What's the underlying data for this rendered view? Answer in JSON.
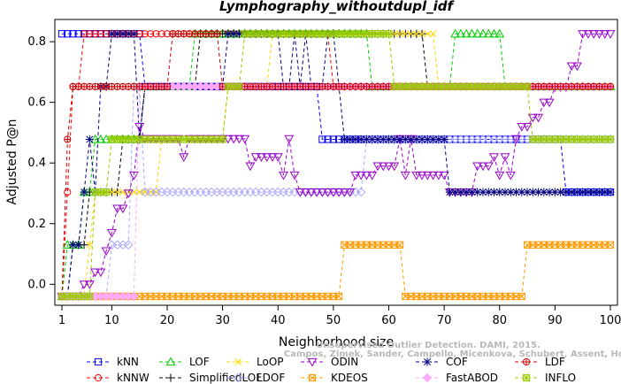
{
  "chart_data": {
    "type": "line",
    "title": "Lymphography_withoutdupl_idf",
    "xlabel": "Neighborhood size",
    "ylabel": "Adjusted P@n",
    "xlim": [
      1,
      100
    ],
    "ylim": [
      -0.04,
      0.85
    ],
    "xticks": [
      1,
      10,
      20,
      30,
      40,
      50,
      60,
      70,
      80,
      90,
      100
    ],
    "yticks": [
      0.0,
      0.2,
      0.4,
      0.6,
      0.8
    ],
    "grid": false,
    "legend_position": "bottom",
    "series": [
      {
        "name": "kNN",
        "color": "#0000ff",
        "marker": "square",
        "points": [
          [
            1,
            0.826
          ],
          [
            15,
            0.826
          ],
          [
            16,
            0.652
          ],
          [
            47,
            0.652
          ],
          [
            48,
            0.478
          ],
          [
            91,
            0.478
          ],
          [
            92,
            0.304
          ],
          [
            100,
            0.304
          ]
        ]
      },
      {
        "name": "kNNW",
        "color": "#ff0000",
        "marker": "circle",
        "points": [
          [
            1,
            -0.04
          ],
          [
            2,
            0.304
          ],
          [
            3,
            0.652
          ],
          [
            4,
            0.652
          ],
          [
            5,
            0.826
          ],
          [
            49,
            0.826
          ],
          [
            50,
            0.652
          ],
          [
            100,
            0.652
          ]
        ]
      },
      {
        "name": "LOF",
        "color": "#00cc00",
        "marker": "triangle",
        "points": [
          [
            1,
            -0.04
          ],
          [
            2,
            0.13
          ],
          [
            4,
            0.13
          ],
          [
            5,
            0.304
          ],
          [
            7,
            0.478
          ],
          [
            14,
            0.478
          ],
          [
            16,
            0.652
          ],
          [
            24,
            0.652
          ],
          [
            25,
            0.826
          ],
          [
            56,
            0.826
          ],
          [
            57,
            0.652
          ],
          [
            71,
            0.652
          ],
          [
            72,
            0.826
          ],
          [
            80,
            0.826
          ],
          [
            81,
            0.652
          ],
          [
            100,
            0.652
          ]
        ]
      },
      {
        "name": "SimplifiedLOF",
        "color": "#000000",
        "marker": "plus",
        "points": [
          [
            1,
            -0.04
          ],
          [
            3,
            0.13
          ],
          [
            5,
            0.13
          ],
          [
            6,
            0.304
          ],
          [
            11,
            0.304
          ],
          [
            12,
            0.478
          ],
          [
            15,
            0.478
          ],
          [
            16,
            0.652
          ],
          [
            25,
            0.652
          ],
          [
            26,
            0.826
          ],
          [
            66,
            0.826
          ],
          [
            67,
            0.652
          ],
          [
            100,
            0.652
          ]
        ]
      },
      {
        "name": "LoOP",
        "color": "#ffd700",
        "marker": "x",
        "points": [
          [
            1,
            -0.04
          ],
          [
            6,
            0.13
          ],
          [
            7,
            0.304
          ],
          [
            18,
            0.304
          ],
          [
            19,
            0.478
          ],
          [
            30,
            0.478
          ],
          [
            31,
            0.652
          ],
          [
            38,
            0.652
          ],
          [
            39,
            0.826
          ],
          [
            68,
            0.826
          ],
          [
            69,
            0.652
          ],
          [
            100,
            0.652
          ]
        ]
      },
      {
        "name": "LDOF",
        "color": "#aaaaff",
        "marker": "diamond",
        "points": [
          [
            1,
            -0.04
          ],
          [
            9,
            -0.04
          ],
          [
            10,
            0.13
          ],
          [
            13,
            0.13
          ],
          [
            14,
            0.652
          ],
          [
            15,
            0.652
          ],
          [
            16,
            0.304
          ],
          [
            55,
            0.304
          ],
          [
            56,
            0.478
          ],
          [
            100,
            0.478
          ]
        ]
      },
      {
        "name": "ODIN",
        "color": "#9900cc",
        "marker": "down-triangle",
        "points": [
          [
            1,
            -0.04
          ],
          [
            5,
            0.0
          ],
          [
            7,
            0.04
          ],
          [
            9,
            0.11
          ],
          [
            10,
            0.17
          ],
          [
            11,
            0.25
          ],
          [
            13,
            0.3
          ],
          [
            14,
            0.36
          ],
          [
            15,
            0.52
          ],
          [
            16,
            0.48
          ],
          [
            22,
            0.48
          ],
          [
            23,
            0.42
          ],
          [
            24,
            0.48
          ],
          [
            33,
            0.48
          ],
          [
            34,
            0.48
          ],
          [
            35,
            0.39
          ],
          [
            36,
            0.42
          ],
          [
            40,
            0.42
          ],
          [
            41,
            0.36
          ],
          [
            42,
            0.48
          ],
          [
            43,
            0.36
          ],
          [
            44,
            0.304
          ],
          [
            53,
            0.304
          ],
          [
            54,
            0.36
          ],
          [
            57,
            0.36
          ],
          [
            58,
            0.39
          ],
          [
            61,
            0.39
          ],
          [
            62,
            0.48
          ],
          [
            63,
            0.36
          ],
          [
            64,
            0.48
          ],
          [
            65,
            0.36
          ],
          [
            70,
            0.36
          ],
          [
            71,
            0.304
          ],
          [
            75,
            0.304
          ],
          [
            76,
            0.39
          ],
          [
            78,
            0.39
          ],
          [
            79,
            0.42
          ],
          [
            80,
            0.36
          ],
          [
            81,
            0.42
          ],
          [
            82,
            0.36
          ],
          [
            83,
            0.48
          ],
          [
            84,
            0.52
          ],
          [
            86,
            0.55
          ],
          [
            88,
            0.6
          ],
          [
            90,
            0.65
          ],
          [
            93,
            0.72
          ],
          [
            95,
            0.826
          ],
          [
            99,
            0.826
          ],
          [
            100,
            0.826
          ]
        ]
      },
      {
        "name": "KDEOS",
        "color": "#ff9900",
        "marker": "square-x",
        "points": [
          [
            1,
            -0.04
          ],
          [
            51,
            -0.04
          ],
          [
            52,
            0.13
          ],
          [
            62,
            0.13
          ],
          [
            63,
            -0.04
          ],
          [
            84,
            -0.04
          ],
          [
            85,
            0.13
          ],
          [
            100,
            0.13
          ]
        ]
      },
      {
        "name": "COF",
        "color": "#000080",
        "marker": "asterisk",
        "points": [
          [
            1,
            -0.04
          ],
          [
            3,
            0.13
          ],
          [
            4,
            0.13
          ],
          [
            5,
            0.304
          ],
          [
            6,
            0.478
          ],
          [
            7,
            0.304
          ],
          [
            8,
            0.652
          ],
          [
            9,
            0.652
          ],
          [
            10,
            0.826
          ],
          [
            14,
            0.826
          ],
          [
            15,
            0.478
          ],
          [
            16,
            0.652
          ],
          [
            30,
            0.652
          ],
          [
            31,
            0.826
          ],
          [
            40,
            0.826
          ],
          [
            41,
            0.652
          ],
          [
            43,
            0.826
          ],
          [
            44,
            0.652
          ],
          [
            45,
            0.826
          ],
          [
            46,
            0.652
          ],
          [
            48,
            0.652
          ],
          [
            49,
            0.826
          ],
          [
            51,
            0.652
          ],
          [
            52,
            0.478
          ],
          [
            70,
            0.478
          ],
          [
            71,
            0.304
          ],
          [
            100,
            0.304
          ]
        ]
      },
      {
        "name": "FastABOD",
        "color": "#ffaaff",
        "marker": "diamond-filled",
        "points": [
          [
            1,
            -0.04
          ],
          [
            14,
            -0.04
          ],
          [
            15,
            0.652
          ],
          [
            100,
            0.652
          ]
        ]
      },
      {
        "name": "LDF",
        "color": "#cc0000",
        "marker": "circle-plus",
        "points": [
          [
            1,
            -0.04
          ],
          [
            2,
            0.478
          ],
          [
            3,
            0.652
          ],
          [
            20,
            0.652
          ],
          [
            21,
            0.826
          ],
          [
            29,
            0.826
          ],
          [
            30,
            0.652
          ],
          [
            100,
            0.652
          ]
        ]
      },
      {
        "name": "INFLO",
        "color": "#99cc00",
        "marker": "square-star",
        "points": [
          [
            1,
            -0.04
          ],
          [
            7,
            0.304
          ],
          [
            10,
            0.478
          ],
          [
            16,
            0.478
          ],
          [
            17,
            0.478
          ],
          [
            30,
            0.478
          ],
          [
            31,
            0.652
          ],
          [
            34,
            0.826
          ],
          [
            60,
            0.826
          ],
          [
            61,
            0.652
          ],
          [
            85,
            0.652
          ],
          [
            86,
            0.478
          ],
          [
            100,
            0.478
          ]
        ]
      }
    ]
  },
  "watermark": {
    "line1": "Unsupervised Outlier Detection. DAMI, 2015.",
    "line2": "Campos, Zimek, Sander, Campello, Micenkova, Schubert, Assent, Houle"
  }
}
